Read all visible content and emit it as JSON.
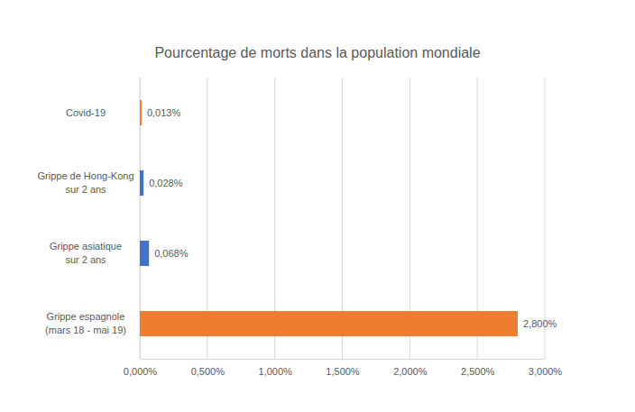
{
  "chart_data": {
    "type": "bar",
    "title": "Pourcentage de morts dans la population mondiale",
    "orientation": "horizontal",
    "categories": [
      "Covid-19",
      "Grippe de Hong-Kong sur 2 ans",
      "Grippe asiatique sur 2 ans",
      "Grippe espagnole (mars 18 - mai 19)"
    ],
    "values": [
      0.013,
      0.028,
      0.068,
      2.8
    ],
    "value_labels": [
      "0,013%",
      "0,028%",
      "0,068%",
      "2,800%"
    ],
    "colors": [
      "#ed7d31",
      "#4472c4",
      "#4472c4",
      "#ed7d31"
    ],
    "data_labels": true,
    "xlim": [
      0,
      3
    ],
    "xticks": [
      {
        "value": 0,
        "label": "0,000%"
      },
      {
        "value": 0.5,
        "label": "0,500%"
      },
      {
        "value": 1,
        "label": "1,000%"
      },
      {
        "value": 1.5,
        "label": "1,500%"
      },
      {
        "value": 2,
        "label": "2,000%"
      },
      {
        "value": 2.5,
        "label": "2,500%"
      },
      {
        "value": 3,
        "label": "3,000%"
      }
    ],
    "grid": true
  }
}
